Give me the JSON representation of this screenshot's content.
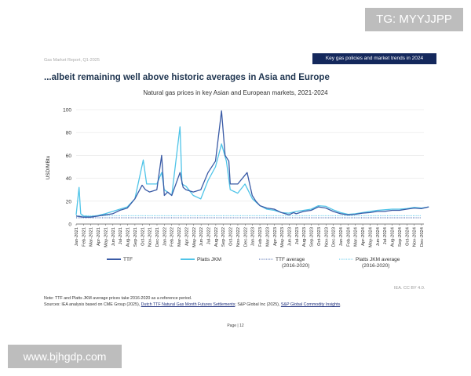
{
  "watermarks": {
    "top": "TG: MYYJJPP",
    "bottom": "www.bjhgdp.com"
  },
  "header": {
    "report": "Gas Market Report, Q1-2025",
    "badge": "Key gas policies and market trends in 2024"
  },
  "page_title": "...albeit remaining well above historic averages in Asia and Europe",
  "footer": {
    "credit": "IEA. CC BY 4.0.",
    "note": "Note: TTF and Platts JKM average prices take 2016-2020 as a reference period.",
    "sources_prefix": "Sources: IEA analysis based on CME Group (2025), ",
    "source_link1": "Dutch TTF Natural Gas Month Futures Settlements",
    "sources_mid": "; S&P Global Inc (2025), ",
    "source_link2": "S&P Global Commodity Insights",
    "sources_end": ".",
    "page": "Page | 12"
  },
  "chart_data": {
    "type": "line",
    "title": "Natural gas prices in key Asian and European markets, 2021-2024",
    "ylabel": "USD/MBtu",
    "ylim": [
      0,
      100
    ],
    "yticks": [
      0,
      20,
      40,
      60,
      80,
      100
    ],
    "grid": true,
    "legend_position": "bottom",
    "xticks": [
      "Jan-2021",
      "Feb-2021",
      "Mar-2021",
      "Apr-2021",
      "May-2021",
      "Jun-2021",
      "Jul-2021",
      "Aug-2021",
      "Sep-2021",
      "Oct-2021",
      "Nov-2021",
      "Dec-2021",
      "Jan-2022",
      "Feb-2022",
      "Mar-2022",
      "Apr-2022",
      "May-2022",
      "Jun-2022",
      "Jul-2022",
      "Aug-2022",
      "Sep-2022",
      "Oct-2022",
      "Nov-2022",
      "Dec-2022",
      "Jan-2023",
      "Feb-2023",
      "Mar-2023",
      "Apr-2023",
      "May-2023",
      "Jun-2023",
      "Jul-2023",
      "Aug-2023",
      "Sep-2023",
      "Oct-2023",
      "Nov-2023",
      "Dec-2023",
      "Jan-2024",
      "Feb-2024",
      "Mar-2024",
      "Apr-2024",
      "May-2024",
      "Jun-2024",
      "Jul-2024",
      "Aug-2024",
      "Sep-2024",
      "Oct-2024",
      "Nov-2024",
      "Dec-2024"
    ],
    "series": [
      {
        "name": "TTF",
        "color": "#3a5ba6",
        "style": "solid",
        "points": [
          [
            "2021-01-01",
            7
          ],
          [
            "2021-02-01",
            6
          ],
          [
            "2021-03-01",
            6
          ],
          [
            "2021-04-01",
            7
          ],
          [
            "2021-05-01",
            8
          ],
          [
            "2021-06-01",
            9
          ],
          [
            "2021-07-01",
            12
          ],
          [
            "2021-08-01",
            14
          ],
          [
            "2021-09-01",
            22
          ],
          [
            "2021-10-01",
            34
          ],
          [
            "2021-10-15",
            30
          ],
          [
            "2021-11-01",
            28
          ],
          [
            "2021-12-01",
            30
          ],
          [
            "2021-12-21",
            60
          ],
          [
            "2022-01-01",
            25
          ],
          [
            "2022-01-15",
            28
          ],
          [
            "2022-02-01",
            25
          ],
          [
            "2022-03-07",
            45
          ],
          [
            "2022-03-20",
            32
          ],
          [
            "2022-04-01",
            30
          ],
          [
            "2022-05-01",
            28
          ],
          [
            "2022-06-01",
            30
          ],
          [
            "2022-07-01",
            45
          ],
          [
            "2022-08-01",
            55
          ],
          [
            "2022-08-26",
            99
          ],
          [
            "2022-09-10",
            60
          ],
          [
            "2022-09-25",
            55
          ],
          [
            "2022-10-01",
            35
          ],
          [
            "2022-11-01",
            35
          ],
          [
            "2022-12-10",
            45
          ],
          [
            "2022-12-31",
            25
          ],
          [
            "2023-01-15",
            20
          ],
          [
            "2023-02-01",
            16
          ],
          [
            "2023-03-01",
            14
          ],
          [
            "2023-04-01",
            13
          ],
          [
            "2023-05-01",
            10
          ],
          [
            "2023-06-01",
            8
          ],
          [
            "2023-06-20",
            10
          ],
          [
            "2023-07-01",
            9
          ],
          [
            "2023-08-01",
            11
          ],
          [
            "2023-09-01",
            12
          ],
          [
            "2023-10-01",
            15
          ],
          [
            "2023-11-01",
            14
          ],
          [
            "2023-12-01",
            11
          ],
          [
            "2024-01-01",
            9
          ],
          [
            "2024-02-01",
            8
          ],
          [
            "2024-03-01",
            8.5
          ],
          [
            "2024-04-01",
            9.5
          ],
          [
            "2024-05-01",
            10
          ],
          [
            "2024-06-01",
            11
          ],
          [
            "2024-07-01",
            11
          ],
          [
            "2024-08-01",
            12
          ],
          [
            "2024-09-01",
            12
          ],
          [
            "2024-10-01",
            13
          ],
          [
            "2024-11-01",
            14
          ],
          [
            "2024-12-01",
            13.5
          ],
          [
            "2024-12-31",
            15
          ]
        ]
      },
      {
        "name": "Platts JKM",
        "color": "#4fc4e8",
        "style": "solid",
        "points": [
          [
            "2021-01-01",
            8
          ],
          [
            "2021-01-13",
            32
          ],
          [
            "2021-01-20",
            9
          ],
          [
            "2021-02-01",
            7
          ],
          [
            "2021-03-01",
            6.5
          ],
          [
            "2021-04-01",
            7.5
          ],
          [
            "2021-05-01",
            9
          ],
          [
            "2021-06-01",
            11
          ],
          [
            "2021-07-01",
            13
          ],
          [
            "2021-08-01",
            15
          ],
          [
            "2021-09-01",
            22
          ],
          [
            "2021-10-06",
            56
          ],
          [
            "2021-10-20",
            35
          ],
          [
            "2021-11-01",
            35
          ],
          [
            "2021-12-01",
            35
          ],
          [
            "2021-12-21",
            45
          ],
          [
            "2022-01-01",
            30
          ],
          [
            "2022-02-01",
            25
          ],
          [
            "2022-03-07",
            85
          ],
          [
            "2022-03-15",
            35
          ],
          [
            "2022-04-01",
            33
          ],
          [
            "2022-05-01",
            25
          ],
          [
            "2022-06-01",
            22
          ],
          [
            "2022-07-01",
            38
          ],
          [
            "2022-08-01",
            50
          ],
          [
            "2022-08-26",
            70
          ],
          [
            "2022-09-15",
            55
          ],
          [
            "2022-10-01",
            30
          ],
          [
            "2022-11-01",
            27
          ],
          [
            "2022-12-01",
            35
          ],
          [
            "2023-01-01",
            22
          ],
          [
            "2023-02-01",
            16
          ],
          [
            "2023-03-01",
            13
          ],
          [
            "2023-04-01",
            12
          ],
          [
            "2023-05-01",
            10
          ],
          [
            "2023-06-01",
            9.5
          ],
          [
            "2023-07-01",
            11
          ],
          [
            "2023-08-01",
            12
          ],
          [
            "2023-09-01",
            13
          ],
          [
            "2023-10-01",
            16
          ],
          [
            "2023-11-01",
            15.5
          ],
          [
            "2023-12-01",
            12.5
          ],
          [
            "2024-01-01",
            10
          ],
          [
            "2024-02-01",
            8.5
          ],
          [
            "2024-03-01",
            9
          ],
          [
            "2024-04-01",
            10
          ],
          [
            "2024-05-01",
            11
          ],
          [
            "2024-06-01",
            12
          ],
          [
            "2024-07-01",
            12.5
          ],
          [
            "2024-08-01",
            13
          ],
          [
            "2024-09-01",
            13
          ],
          [
            "2024-10-01",
            13.5
          ],
          [
            "2024-11-01",
            14.5
          ],
          [
            "2024-12-01",
            14
          ],
          [
            "2024-12-31",
            15
          ]
        ]
      },
      {
        "name": "TTF average (2016-2020)",
        "label_lines": [
          "TTF average",
          "(2016-2020)"
        ],
        "color": "#3a5ba6",
        "style": "dotted",
        "value": 5.5
      },
      {
        "name": "Platts JKM average (2016-2020)",
        "label_lines": [
          "Platts JKM average",
          "(2016-2020)"
        ],
        "color": "#4fc4e8",
        "style": "dotted",
        "value": 7.3
      }
    ]
  }
}
